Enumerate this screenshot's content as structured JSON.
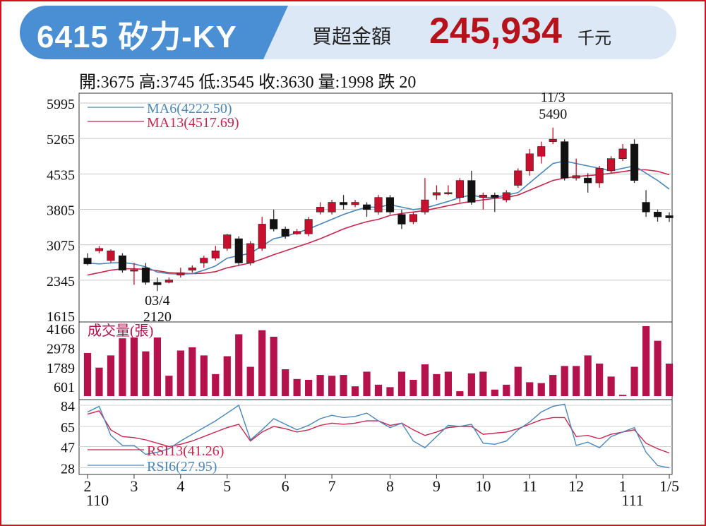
{
  "header": {
    "stock_title": "6415 矽力-KY",
    "net_buy_label": "買超金額",
    "net_buy_value": "245,934",
    "net_buy_unit": "千元"
  },
  "summary": "開:3675 高:3745 低:3545 收:3630 量:1998 跌 20",
  "colors": {
    "up": "#c8102e",
    "down": "#111111",
    "ma6": "#4a86b8",
    "ma13": "#c8254d",
    "volume": "#b5114b"
  },
  "chart_data": [
    {
      "type": "candlestick",
      "ylim": [
        1615,
        5995
      ],
      "yticks": [
        "5995",
        "5265",
        "4535",
        "3805",
        "3075",
        "2345",
        "1615"
      ],
      "legend": [
        "MA6(4222.50)",
        "MA13(4517.69)"
      ],
      "annotations": [
        {
          "label": "11/3",
          "value": "5490",
          "index": 40,
          "position": "above"
        },
        {
          "label": "03/4",
          "value": "2120",
          "index": 6,
          "position": "below"
        }
      ],
      "candles": [
        [
          2800,
          2680,
          2900,
          2650
        ],
        [
          2950,
          3000,
          3050,
          2900
        ],
        [
          2750,
          2950,
          2980,
          2700
        ],
        [
          2850,
          2550,
          2900,
          2500
        ],
        [
          2550,
          2560,
          2700,
          2250
        ],
        [
          2600,
          2300,
          2700,
          2250
        ],
        [
          2300,
          2250,
          2400,
          2120
        ],
        [
          2300,
          2350,
          2400,
          2280
        ],
        [
          2450,
          2500,
          2600,
          2400
        ],
        [
          2550,
          2600,
          2650,
          2500
        ],
        [
          2700,
          2800,
          2850,
          2600
        ],
        [
          2800,
          2950,
          3050,
          2750
        ],
        [
          3000,
          3280,
          3300,
          2950
        ],
        [
          3200,
          2700,
          3250,
          2650
        ],
        [
          2700,
          3100,
          3150,
          2650
        ],
        [
          3000,
          3500,
          3650,
          2950
        ],
        [
          3600,
          3400,
          3800,
          3350
        ],
        [
          3400,
          3250,
          3450,
          3200
        ],
        [
          3300,
          3350,
          3400,
          3280
        ],
        [
          3300,
          3600,
          3650,
          3250
        ],
        [
          3750,
          3850,
          3950,
          3700
        ],
        [
          3750,
          3950,
          4000,
          3700
        ],
        [
          3950,
          3900,
          4100,
          3800
        ],
        [
          3900,
          3950,
          4000,
          3850
        ],
        [
          3900,
          3800,
          3950,
          3650
        ],
        [
          3750,
          4050,
          4100,
          3700
        ],
        [
          4050,
          3750,
          4100,
          3700
        ],
        [
          3700,
          3500,
          3800,
          3400
        ],
        [
          3550,
          3700,
          3750,
          3500
        ],
        [
          3750,
          4000,
          4450,
          3700
        ],
        [
          4100,
          4150,
          4300,
          4000
        ],
        [
          4150,
          4150,
          4300,
          4100
        ],
        [
          4050,
          4400,
          4450,
          3950
        ],
        [
          4400,
          3950,
          4600,
          3900
        ],
        [
          4050,
          4100,
          4150,
          3800
        ],
        [
          4100,
          4050,
          4150,
          3750
        ],
        [
          4000,
          4150,
          4200,
          3950
        ],
        [
          4300,
          4600,
          4650,
          4250
        ],
        [
          4600,
          4950,
          5050,
          4500
        ],
        [
          4900,
          5100,
          5200,
          4750
        ],
        [
          5200,
          5250,
          5490,
          5150
        ],
        [
          5200,
          4450,
          5250,
          4400
        ],
        [
          4450,
          4500,
          4850,
          4400
        ],
        [
          4450,
          4350,
          4550,
          4150
        ],
        [
          4350,
          4650,
          4700,
          4250
        ],
        [
          4600,
          4850,
          4900,
          4550
        ],
        [
          4850,
          5050,
          5150,
          4800
        ],
        [
          5150,
          4400,
          5250,
          4350
        ],
        [
          3950,
          3750,
          4200,
          3650
        ],
        [
          3750,
          3650,
          3800,
          3550
        ],
        [
          3675,
          3630,
          3745,
          3545
        ]
      ],
      "ma6": [
        2700,
        2680,
        2700,
        2710,
        2680,
        2620,
        2510,
        2480,
        2470,
        2480,
        2550,
        2640,
        2800,
        2850,
        2900,
        3050,
        3200,
        3250,
        3320,
        3400,
        3500,
        3600,
        3700,
        3780,
        3850,
        3850,
        3900,
        3850,
        3800,
        3830,
        3900,
        3970,
        4050,
        4100,
        4050,
        4050,
        4100,
        4150,
        4350,
        4550,
        4750,
        4800,
        4750,
        4700,
        4650,
        4600,
        4650,
        4700,
        4550,
        4400,
        4222.5
      ],
      "ma13": [
        2450,
        2500,
        2550,
        2580,
        2580,
        2570,
        2540,
        2500,
        2490,
        2480,
        2490,
        2520,
        2600,
        2650,
        2700,
        2780,
        2870,
        2950,
        3030,
        3110,
        3200,
        3300,
        3400,
        3480,
        3550,
        3600,
        3680,
        3720,
        3750,
        3780,
        3830,
        3880,
        3930,
        3970,
        4000,
        4030,
        4050,
        4100,
        4200,
        4300,
        4400,
        4450,
        4480,
        4500,
        4520,
        4550,
        4580,
        4620,
        4620,
        4590,
        4517.69
      ]
    },
    {
      "type": "bar",
      "title": "成交量(張)",
      "ylim": [
        0,
        4166
      ],
      "yticks": [
        "4166",
        "2978",
        "1789",
        "601"
      ],
      "values": [
        2650,
        1750,
        2500,
        3550,
        3600,
        2750,
        3600,
        1250,
        2800,
        3000,
        2500,
        1350,
        2450,
        3800,
        1800,
        4050,
        3650,
        1650,
        1050,
        1000,
        1300,
        1250,
        1300,
        600,
        1500,
        700,
        550,
        1500,
        1000,
        1950,
        1350,
        1500,
        300,
        1400,
        1500,
        400,
        700,
        1800,
        850,
        800,
        1300,
        1850,
        1850,
        2500,
        2000,
        1200,
        80,
        1800,
        4300,
        3400,
        1998
      ]
    },
    {
      "type": "line",
      "ylim": [
        22,
        84
      ],
      "yticks": [
        "84",
        "65",
        "47",
        "28"
      ],
      "legend": [
        "RSI13(41.26)",
        "RSI6(27.95)"
      ],
      "rsi13": [
        76,
        79,
        62,
        56,
        55,
        53,
        50,
        47,
        49,
        52,
        56,
        60,
        64,
        67,
        52,
        60,
        65,
        63,
        60,
        62,
        66,
        68,
        67,
        68,
        70,
        70,
        66,
        68,
        62,
        57,
        60,
        64,
        65,
        65,
        58,
        59,
        60,
        63,
        67,
        71,
        73,
        73,
        56,
        57,
        54,
        58,
        60,
        62,
        50,
        45,
        41.26
      ],
      "rsi6": [
        78,
        83,
        57,
        48,
        48,
        40,
        42,
        45,
        52,
        58,
        64,
        70,
        77,
        84,
        53,
        62,
        72,
        67,
        62,
        66,
        72,
        75,
        73,
        74,
        77,
        70,
        64,
        68,
        52,
        46,
        56,
        66,
        65,
        67,
        50,
        49,
        52,
        62,
        69,
        78,
        83,
        85,
        48,
        51,
        46,
        56,
        60,
        64,
        42,
        30,
        27.95
      ]
    }
  ],
  "xaxis": {
    "labels": [
      {
        "label": "2",
        "index": 0
      },
      {
        "label": "3",
        "index": 4
      },
      {
        "label": "4",
        "index": 8
      },
      {
        "label": "5",
        "index": 12
      },
      {
        "label": "6",
        "index": 17
      },
      {
        "label": "7",
        "index": 21
      },
      {
        "label": "8",
        "index": 26
      },
      {
        "label": "9",
        "index": 30
      },
      {
        "label": "10",
        "index": 34
      },
      {
        "label": "11",
        "index": 38
      },
      {
        "label": "12",
        "index": 42
      },
      {
        "label": "1",
        "index": 46
      },
      {
        "label": "1/5",
        "index": 50
      }
    ],
    "year_labels": [
      {
        "label": "110",
        "index": 0
      },
      {
        "label": "111",
        "index": 46
      }
    ]
  }
}
